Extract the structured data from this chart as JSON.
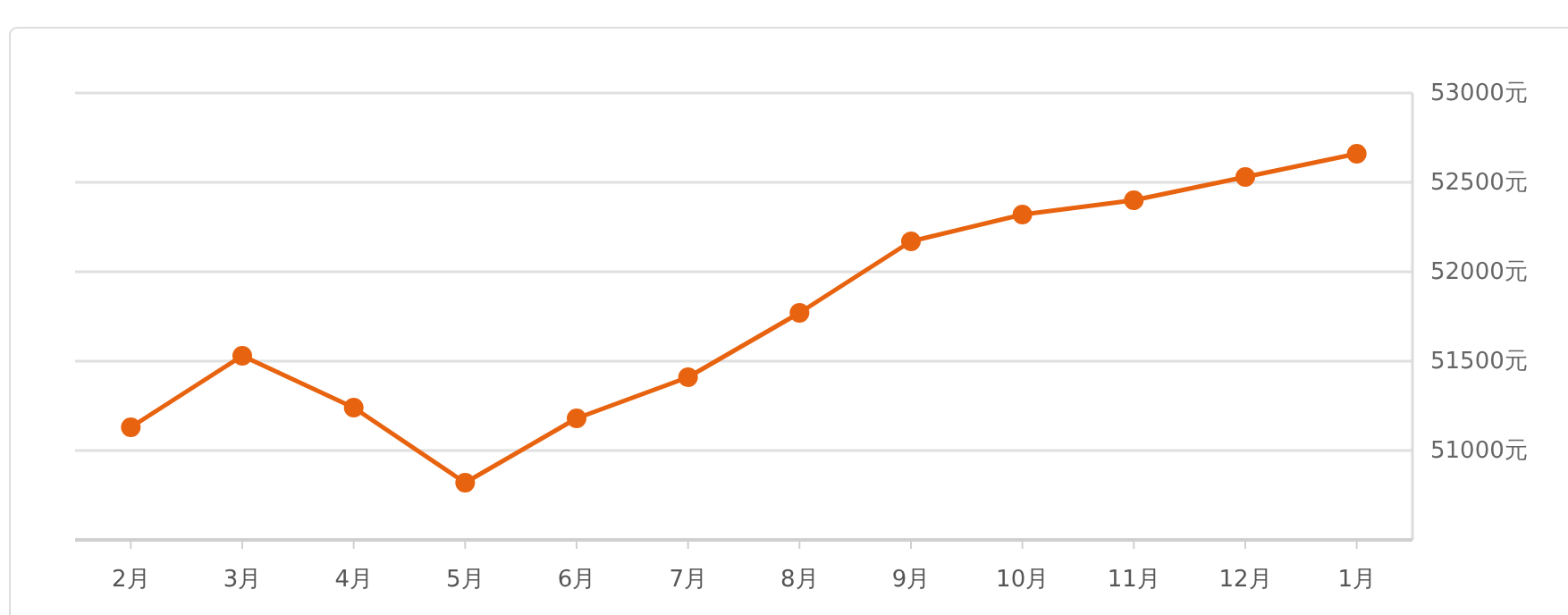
{
  "chart_data": {
    "type": "line",
    "categories": [
      "2月",
      "3月",
      "4月",
      "5月",
      "6月",
      "7月",
      "8月",
      "9月",
      "10月",
      "11月",
      "12月",
      "1月"
    ],
    "series": [
      {
        "color": "#e8630f",
        "values": [
          51130,
          51530,
          51240,
          50820,
          51180,
          51410,
          51770,
          52170,
          52320,
          52400,
          52530,
          52660
        ]
      }
    ],
    "ylim": [
      50500,
      53000
    ],
    "yticks": [
      {
        "value": 51000,
        "label": "51000元"
      },
      {
        "value": 51500,
        "label": "51500元"
      },
      {
        "value": 52000,
        "label": "52000元"
      },
      {
        "value": 52500,
        "label": "52500元"
      },
      {
        "value": 53000,
        "label": "53000元"
      }
    ],
    "grid": "y",
    "marker": "circle",
    "line_style": "solid"
  }
}
